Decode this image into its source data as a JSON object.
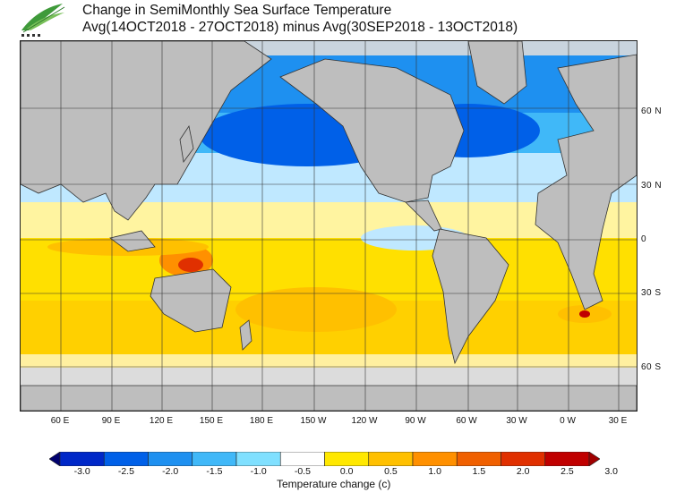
{
  "header": {
    "title_line1": "Change in SemiMonthly Sea Surface Temperature",
    "title_line2": "Avg(14OCT2018 - 27OCT2018) minus Avg(30SEP2018 - 13OCT2018)",
    "logo_icon": "leaf-logo-icon",
    "logo_color": "#3f9a3a"
  },
  "map": {
    "lat_labels": [
      "60 N",
      "30 N",
      "0",
      "30 S",
      "60 S"
    ],
    "lon_labels": [
      "60 E",
      "90 E",
      "120 E",
      "150 E",
      "180 E",
      "150 W",
      "120 W",
      "90 W",
      "60 W",
      "30 W",
      "0 W",
      "30 E"
    ],
    "land_color": "#bebebe",
    "ice_color": "#dcdcdc"
  },
  "colorbar": {
    "title": "Temperature change  (c)",
    "tick_labels": [
      "-3.0",
      "-2.5",
      "-2.0",
      "-1.5",
      "-1.0",
      "-0.5",
      "0.0",
      "0.5",
      "1.0",
      "1.5",
      "2.0",
      "2.5",
      "3.0"
    ],
    "colors": [
      "#00006e",
      "#0028c8",
      "#0060e8",
      "#1e90f0",
      "#40b8f8",
      "#80e0ff",
      "#ffffff",
      "#ffe800",
      "#ffc000",
      "#ff9000",
      "#f06000",
      "#e03000",
      "#c00000",
      "#a00000"
    ]
  }
}
